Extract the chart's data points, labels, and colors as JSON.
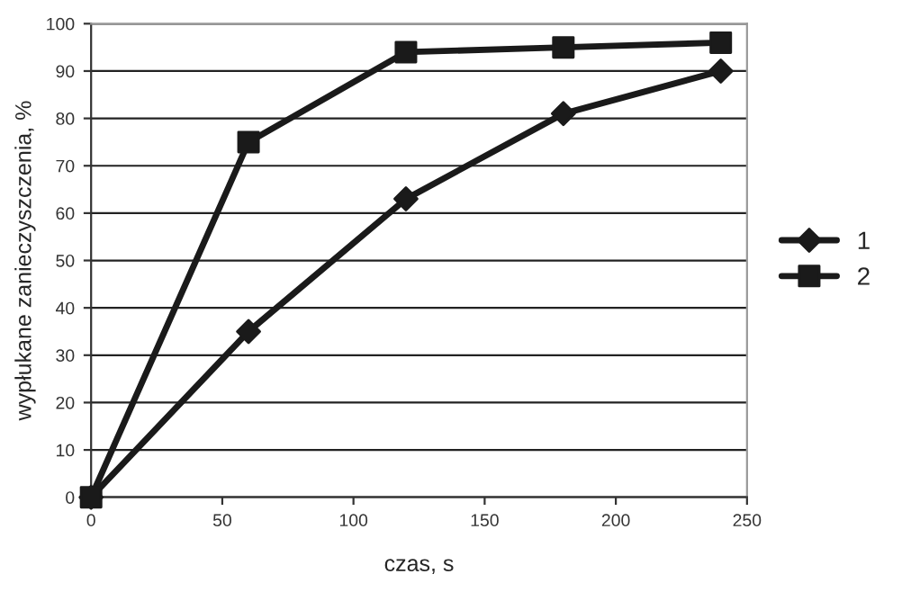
{
  "chart_data": {
    "type": "line",
    "xlabel": "czas, s",
    "ylabel": "wypłukane zanieczyszczenia, %",
    "x": [
      0,
      60,
      120,
      180,
      240
    ],
    "series": [
      {
        "name": "1",
        "color": "#1a1a1a",
        "marker": "diamond",
        "values": [
          0,
          35,
          63,
          81,
          90
        ]
      },
      {
        "name": "2",
        "color": "#1a1a1a",
        "marker": "square",
        "values": [
          0,
          75,
          94,
          95,
          96
        ]
      }
    ],
    "xlim": [
      0,
      250
    ],
    "xticks": [
      0,
      50,
      100,
      150,
      200,
      250
    ],
    "ylim": [
      0,
      100
    ],
    "yticks": [
      0,
      10,
      20,
      30,
      40,
      50,
      60,
      70,
      80,
      90,
      100
    ],
    "grid": "y",
    "legend": "right",
    "line_style": "solid"
  }
}
